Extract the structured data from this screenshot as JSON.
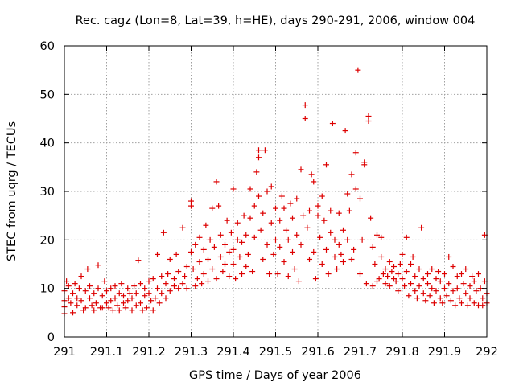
{
  "chart_data": {
    "type": "scatter",
    "title": "Rec. cagz (Lon=8, Lat=39, h=HE), days 290-291, 2006, window 004",
    "xlabel": "GPS time / Days of year 2006",
    "ylabel": "STEC from uqrg / TECUs",
    "xlim": [
      291,
      292
    ],
    "ylim": [
      0,
      60
    ],
    "xticks": [
      "291",
      "291.1",
      "291.2",
      "291.3",
      "291.4",
      "291.5",
      "291.6",
      "291.7",
      "291.8",
      "291.9",
      "292"
    ],
    "yticks": [
      "0",
      "10",
      "20",
      "30",
      "40",
      "50",
      "60"
    ],
    "grid": true,
    "marker": "plus",
    "color": "#dd0000",
    "series": [
      {
        "points": [
          [
            291.0,
            9.5
          ],
          [
            291.0,
            7.5
          ],
          [
            291.0,
            6.2
          ],
          [
            291.0,
            4.8
          ],
          [
            291.005,
            11.5
          ],
          [
            291.01,
            8.0
          ],
          [
            291.01,
            10.5
          ],
          [
            291.015,
            7.0
          ],
          [
            291.02,
            5.0
          ],
          [
            291.02,
            9.0
          ],
          [
            291.025,
            11.0
          ],
          [
            291.03,
            6.5
          ],
          [
            291.03,
            8.0
          ],
          [
            291.035,
            10.0
          ],
          [
            291.04,
            7.5
          ],
          [
            291.04,
            12.5
          ],
          [
            291.045,
            5.5
          ],
          [
            291.05,
            9.5
          ],
          [
            291.05,
            6.0
          ],
          [
            291.055,
            14.0
          ],
          [
            291.06,
            8.0
          ],
          [
            291.06,
            10.5
          ],
          [
            291.065,
            6.5
          ],
          [
            291.07,
            9.0
          ],
          [
            291.07,
            5.5
          ],
          [
            291.075,
            7.0
          ],
          [
            291.08,
            14.8
          ],
          [
            291.08,
            10.0
          ],
          [
            291.085,
            6.0
          ],
          [
            291.09,
            8.5
          ],
          [
            291.09,
            6.0
          ],
          [
            291.095,
            11.5
          ],
          [
            291.1,
            7.0
          ],
          [
            291.1,
            9.5
          ],
          [
            291.105,
            6.0
          ],
          [
            291.11,
            10.0
          ],
          [
            291.11,
            7.5
          ],
          [
            291.115,
            5.5
          ],
          [
            291.12,
            8.0
          ],
          [
            291.12,
            10.5
          ],
          [
            291.125,
            6.5
          ],
          [
            291.13,
            9.0
          ],
          [
            291.13,
            5.5
          ],
          [
            291.135,
            11.0
          ],
          [
            291.14,
            7.0
          ],
          [
            291.14,
            8.5
          ],
          [
            291.145,
            6.0
          ],
          [
            291.15,
            10.0
          ],
          [
            291.15,
            7.5
          ],
          [
            291.155,
            9.0
          ],
          [
            291.16,
            5.5
          ],
          [
            291.16,
            8.0
          ],
          [
            291.165,
            10.5
          ],
          [
            291.17,
            6.5
          ],
          [
            291.17,
            9.0
          ],
          [
            291.175,
            15.8
          ],
          [
            291.18,
            7.0
          ],
          [
            291.18,
            11.0
          ],
          [
            291.185,
            5.5
          ],
          [
            291.19,
            8.5
          ],
          [
            291.19,
            10.0
          ],
          [
            291.195,
            6.0
          ],
          [
            291.2,
            9.0
          ],
          [
            291.2,
            11.5
          ],
          [
            291.205,
            7.5
          ],
          [
            291.21,
            5.5
          ],
          [
            291.21,
            12.0
          ],
          [
            291.215,
            8.0
          ],
          [
            291.22,
            17.0
          ],
          [
            291.22,
            10.0
          ],
          [
            291.225,
            7.0
          ],
          [
            291.23,
            12.5
          ],
          [
            291.23,
            9.0
          ],
          [
            291.235,
            21.5
          ],
          [
            291.24,
            8.0
          ],
          [
            291.24,
            11.0
          ],
          [
            291.245,
            13.0
          ],
          [
            291.25,
            9.5
          ],
          [
            291.25,
            16.0
          ],
          [
            291.26,
            10.5
          ],
          [
            291.26,
            12.0
          ],
          [
            291.265,
            17.0
          ],
          [
            291.27,
            10.0
          ],
          [
            291.27,
            13.5
          ],
          [
            291.28,
            11.0
          ],
          [
            291.28,
            22.5
          ],
          [
            291.285,
            12.5
          ],
          [
            291.29,
            10.0
          ],
          [
            291.29,
            14.5
          ],
          [
            291.3,
            28.0
          ],
          [
            291.3,
            27.0
          ],
          [
            291.3,
            17.5
          ],
          [
            291.305,
            14.0
          ],
          [
            291.31,
            10.5
          ],
          [
            291.31,
            19.0
          ],
          [
            291.315,
            12.0
          ],
          [
            291.32,
            20.5
          ],
          [
            291.32,
            15.5
          ],
          [
            291.325,
            11.0
          ],
          [
            291.33,
            18.0
          ],
          [
            291.33,
            13.0
          ],
          [
            291.335,
            23.0
          ],
          [
            291.34,
            16.0
          ],
          [
            291.34,
            11.5
          ],
          [
            291.345,
            20.0
          ],
          [
            291.35,
            26.5
          ],
          [
            291.35,
            14.0
          ],
          [
            291.355,
            18.5
          ],
          [
            291.36,
            32.0
          ],
          [
            291.36,
            12.0
          ],
          [
            291.365,
            27.0
          ],
          [
            291.37,
            16.5
          ],
          [
            291.37,
            21.0
          ],
          [
            291.375,
            13.5
          ],
          [
            291.38,
            19.0
          ],
          [
            291.38,
            15.0
          ],
          [
            291.385,
            24.0
          ],
          [
            291.39,
            12.5
          ],
          [
            291.39,
            17.5
          ],
          [
            291.395,
            21.5
          ],
          [
            291.4,
            15.0
          ],
          [
            291.4,
            30.5
          ],
          [
            291.4,
            18.0
          ],
          [
            291.405,
            12.0
          ],
          [
            291.41,
            20.0
          ],
          [
            291.41,
            23.5
          ],
          [
            291.415,
            16.5
          ],
          [
            291.42,
            13.0
          ],
          [
            291.42,
            19.5
          ],
          [
            291.425,
            25.0
          ],
          [
            291.43,
            14.5
          ],
          [
            291.43,
            21.0
          ],
          [
            291.435,
            17.0
          ],
          [
            291.44,
            24.5
          ],
          [
            291.44,
            30.5
          ],
          [
            291.445,
            13.5
          ],
          [
            291.45,
            27.0
          ],
          [
            291.45,
            20.5
          ],
          [
            291.455,
            34.0
          ],
          [
            291.46,
            37.0
          ],
          [
            291.46,
            38.5
          ],
          [
            291.46,
            29.0
          ],
          [
            291.465,
            22.0
          ],
          [
            291.47,
            25.5
          ],
          [
            291.47,
            16.0
          ],
          [
            291.475,
            38.5
          ],
          [
            291.48,
            30.0
          ],
          [
            291.48,
            19.0
          ],
          [
            291.485,
            13.0
          ],
          [
            291.49,
            31.0
          ],
          [
            291.49,
            23.5
          ],
          [
            291.495,
            17.0
          ],
          [
            291.5,
            26.5
          ],
          [
            291.5,
            20.0
          ],
          [
            291.505,
            13.0
          ],
          [
            291.51,
            24.0
          ],
          [
            291.51,
            18.5
          ],
          [
            291.515,
            29.0
          ],
          [
            291.52,
            26.5
          ],
          [
            291.52,
            15.5
          ],
          [
            291.525,
            22.0
          ],
          [
            291.53,
            20.0
          ],
          [
            291.53,
            12.5
          ],
          [
            291.535,
            27.5
          ],
          [
            291.54,
            17.5
          ],
          [
            291.54,
            24.5
          ],
          [
            291.545,
            14.0
          ],
          [
            291.55,
            28.5
          ],
          [
            291.55,
            21.0
          ],
          [
            291.555,
            11.5
          ],
          [
            291.56,
            34.5
          ],
          [
            291.56,
            19.0
          ],
          [
            291.565,
            25.0
          ],
          [
            291.57,
            47.8
          ],
          [
            291.57,
            45.0
          ],
          [
            291.575,
            22.5
          ],
          [
            291.58,
            16.0
          ],
          [
            291.58,
            26.0
          ],
          [
            291.585,
            33.5
          ],
          [
            291.59,
            32.0
          ],
          [
            291.59,
            17.5
          ],
          [
            291.595,
            12.0
          ],
          [
            291.6,
            27.0
          ],
          [
            291.6,
            25.0
          ],
          [
            291.605,
            20.5
          ],
          [
            291.61,
            29.0
          ],
          [
            291.61,
            15.0
          ],
          [
            291.615,
            24.0
          ],
          [
            291.62,
            35.5
          ],
          [
            291.62,
            18.0
          ],
          [
            291.625,
            13.0
          ],
          [
            291.63,
            21.5
          ],
          [
            291.63,
            26.0
          ],
          [
            291.635,
            44.0
          ],
          [
            291.64,
            16.5
          ],
          [
            291.64,
            20.0
          ],
          [
            291.645,
            14.0
          ],
          [
            291.65,
            19.0
          ],
          [
            291.65,
            25.5
          ],
          [
            291.655,
            17.0
          ],
          [
            291.66,
            22.0
          ],
          [
            291.66,
            15.5
          ],
          [
            291.665,
            42.5
          ],
          [
            291.67,
            20.0
          ],
          [
            291.67,
            29.5
          ],
          [
            291.675,
            26.0
          ],
          [
            291.68,
            33.5
          ],
          [
            291.68,
            16.0
          ],
          [
            291.685,
            18.0
          ],
          [
            291.69,
            30.5
          ],
          [
            291.69,
            38.0
          ],
          [
            291.695,
            55.0
          ],
          [
            291.7,
            28.5
          ],
          [
            291.7,
            13.0
          ],
          [
            291.705,
            20.0
          ],
          [
            291.71,
            36.0
          ],
          [
            291.71,
            35.5
          ],
          [
            291.715,
            11.0
          ],
          [
            291.72,
            45.5
          ],
          [
            291.72,
            44.5
          ],
          [
            291.725,
            24.5
          ],
          [
            291.73,
            18.5
          ],
          [
            291.73,
            10.5
          ],
          [
            291.735,
            15.0
          ],
          [
            291.74,
            21.0
          ],
          [
            291.74,
            11.5
          ],
          [
            291.745,
            12.0
          ],
          [
            291.75,
            16.5
          ],
          [
            291.75,
            20.5
          ],
          [
            291.755,
            13.0
          ],
          [
            291.76,
            14.0
          ],
          [
            291.76,
            11.0
          ],
          [
            291.765,
            12.5
          ],
          [
            291.77,
            10.5
          ],
          [
            291.77,
            15.5
          ],
          [
            291.775,
            13.5
          ],
          [
            291.78,
            12.0
          ],
          [
            291.78,
            14.5
          ],
          [
            291.785,
            11.5
          ],
          [
            291.79,
            13.0
          ],
          [
            291.79,
            9.5
          ],
          [
            291.795,
            15.0
          ],
          [
            291.8,
            12.0
          ],
          [
            291.8,
            17.0
          ],
          [
            291.805,
            10.5
          ],
          [
            291.81,
            20.5
          ],
          [
            291.81,
            13.5
          ],
          [
            291.815,
            8.5
          ],
          [
            291.82,
            15.0
          ],
          [
            291.82,
            11.0
          ],
          [
            291.825,
            16.5
          ],
          [
            291.83,
            9.5
          ],
          [
            291.83,
            12.5
          ],
          [
            291.835,
            8.0
          ],
          [
            291.84,
            14.0
          ],
          [
            291.84,
            10.5
          ],
          [
            291.845,
            22.5
          ],
          [
            291.85,
            12.0
          ],
          [
            291.85,
            9.0
          ],
          [
            291.855,
            7.5
          ],
          [
            291.86,
            13.0
          ],
          [
            291.86,
            11.0
          ],
          [
            291.865,
            8.5
          ],
          [
            291.87,
            14.0
          ],
          [
            291.87,
            10.0
          ],
          [
            291.875,
            7.0
          ],
          [
            291.88,
            12.0
          ],
          [
            291.88,
            9.5
          ],
          [
            291.885,
            13.5
          ],
          [
            291.89,
            8.0
          ],
          [
            291.89,
            11.5
          ],
          [
            291.895,
            7.0
          ],
          [
            291.9,
            10.0
          ],
          [
            291.9,
            13.0
          ],
          [
            291.905,
            8.5
          ],
          [
            291.91,
            16.5
          ],
          [
            291.91,
            11.0
          ],
          [
            291.915,
            7.5
          ],
          [
            291.92,
            14.5
          ],
          [
            291.92,
            9.5
          ],
          [
            291.925,
            6.5
          ],
          [
            291.93,
            12.5
          ],
          [
            291.93,
            10.0
          ],
          [
            291.935,
            8.0
          ],
          [
            291.94,
            13.0
          ],
          [
            291.94,
            7.0
          ],
          [
            291.945,
            11.0
          ],
          [
            291.95,
            9.0
          ],
          [
            291.95,
            14.0
          ],
          [
            291.955,
            6.5
          ],
          [
            291.96,
            10.5
          ],
          [
            291.96,
            8.0
          ],
          [
            291.965,
            12.5
          ],
          [
            291.97,
            7.0
          ],
          [
            291.97,
            11.5
          ],
          [
            291.975,
            9.5
          ],
          [
            291.98,
            6.5
          ],
          [
            291.98,
            13.0
          ],
          [
            291.985,
            10.0
          ],
          [
            291.99,
            8.0
          ],
          [
            291.99,
            6.5
          ],
          [
            291.995,
            21.0
          ],
          [
            291.995,
            11.5
          ],
          [
            292.0,
            9.0
          ],
          [
            292.0,
            7.0
          ]
        ]
      }
    ]
  }
}
